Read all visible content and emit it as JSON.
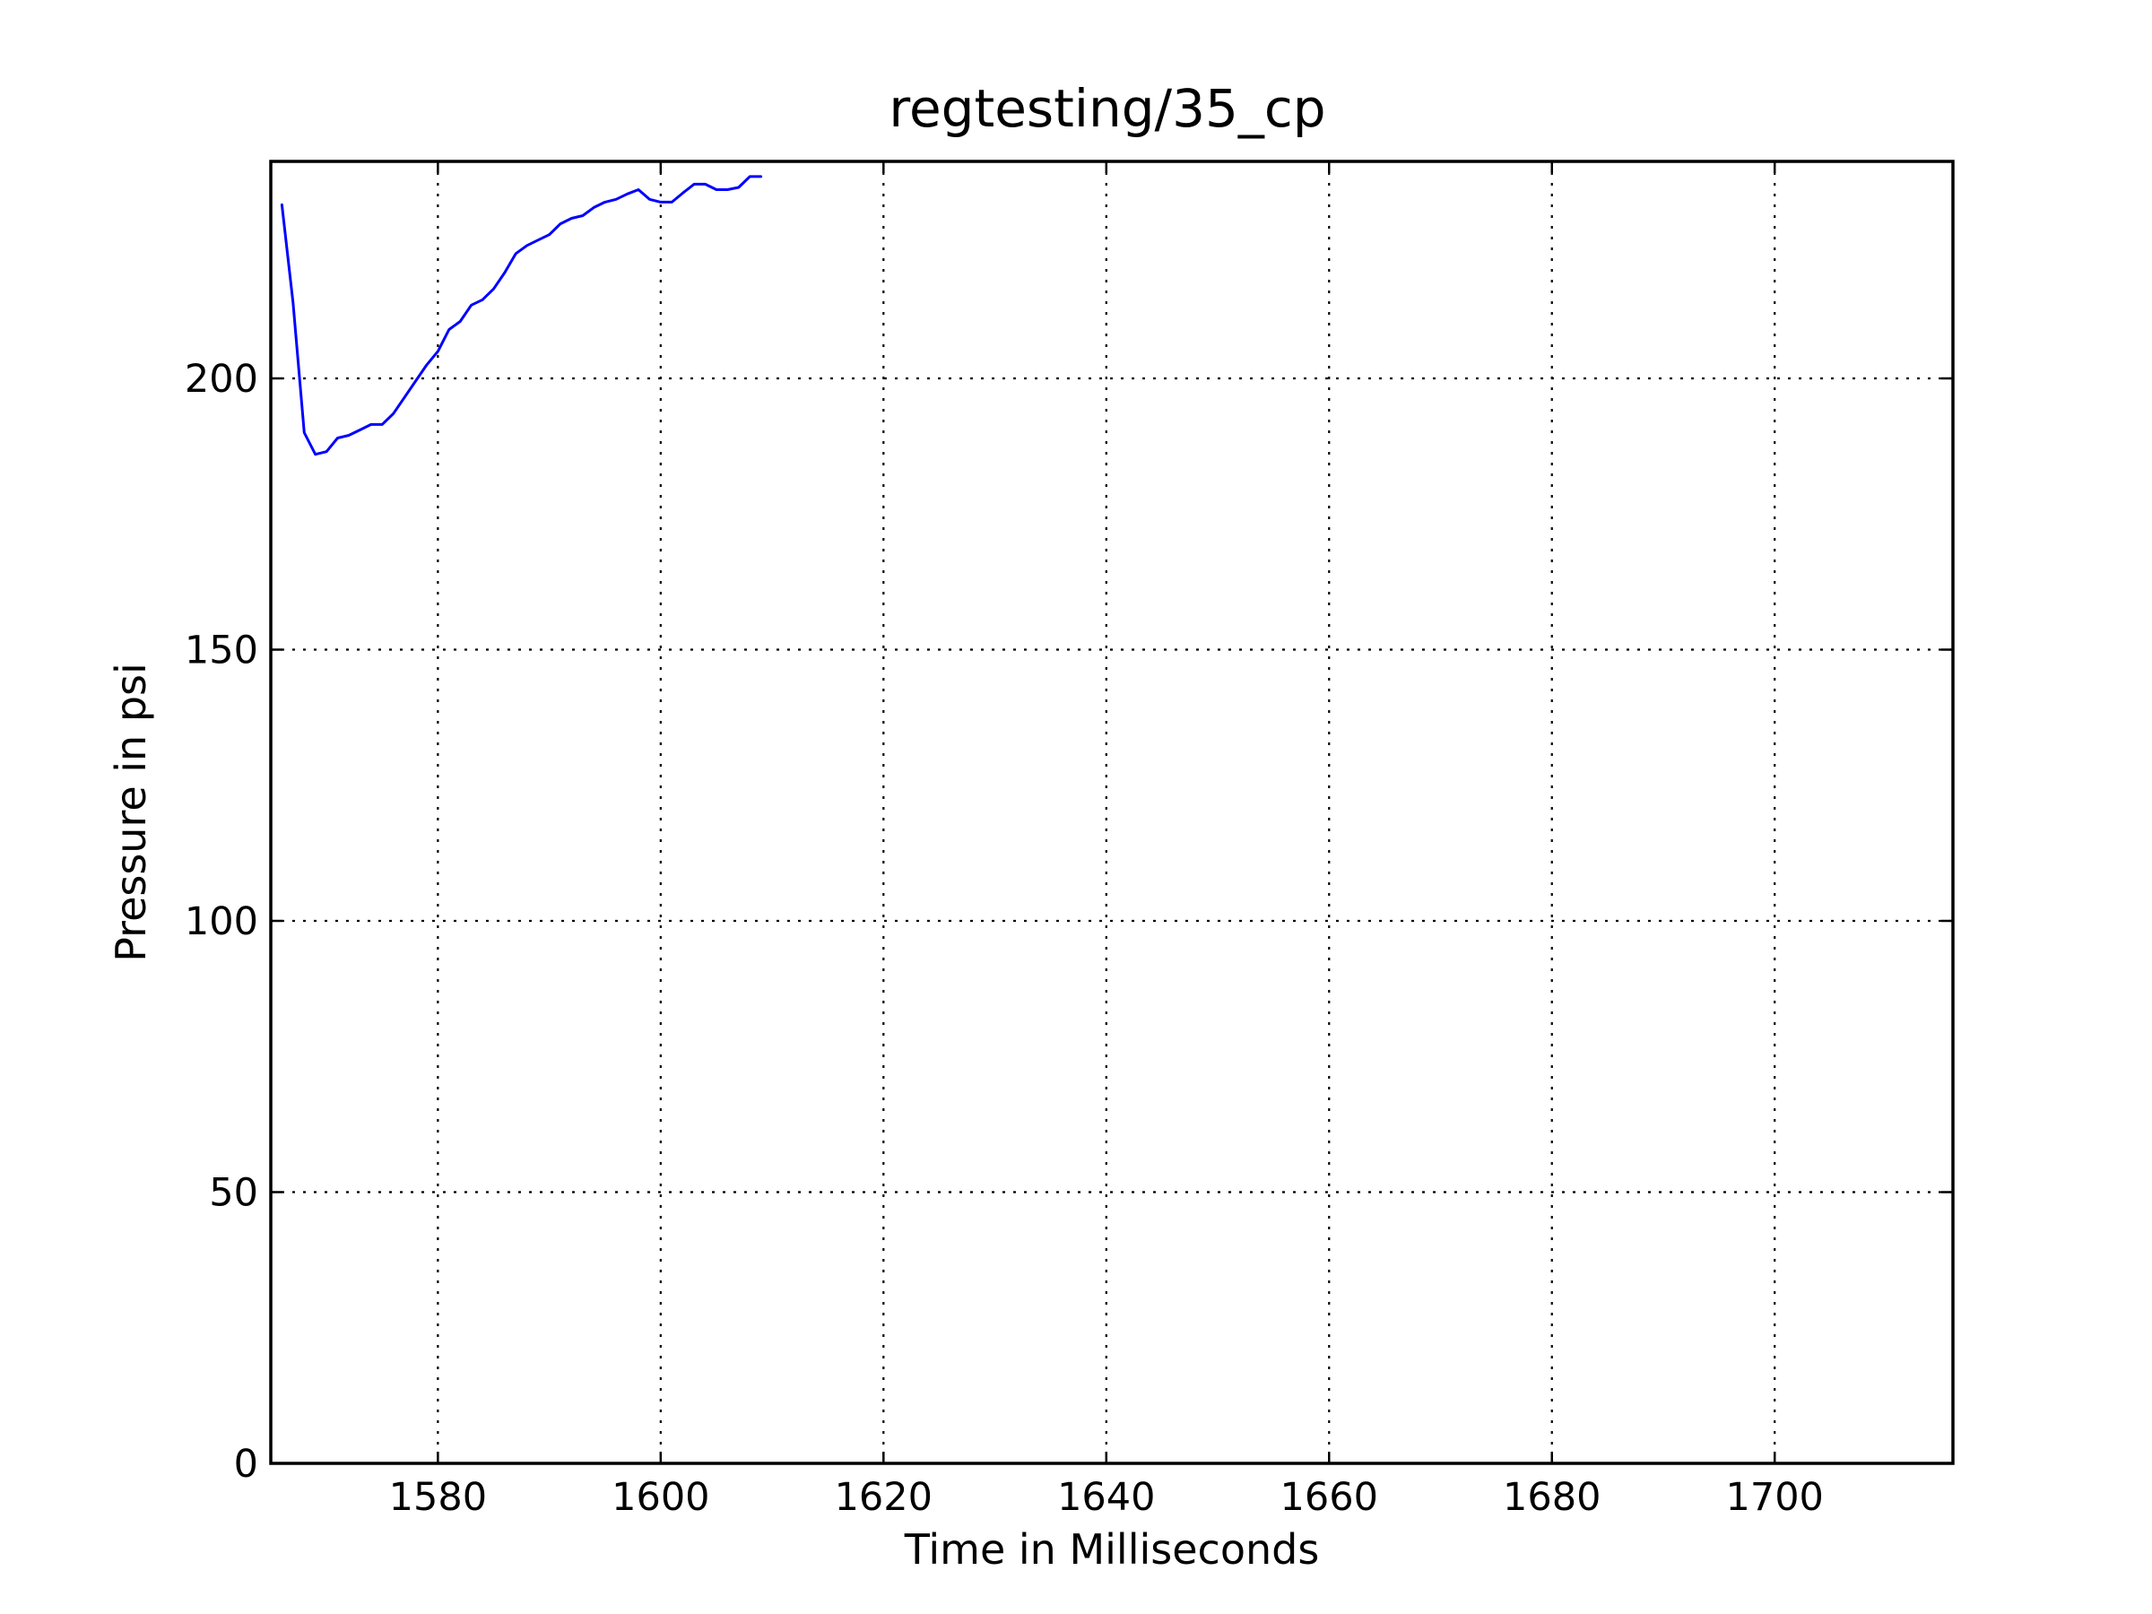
{
  "chart_data": {
    "type": "line",
    "title": "regtesting/35_cp",
    "xlabel": "Time in Milliseconds",
    "ylabel": "Pressure in psi",
    "xlim": [
      1565,
      1716
    ],
    "ylim": [
      0,
      240
    ],
    "x_ticks": [
      1580,
      1600,
      1620,
      1640,
      1660,
      1680,
      1700
    ],
    "y_ticks": [
      0,
      50,
      100,
      150,
      200
    ],
    "x_tick_labels": [
      "1580",
      "1600",
      "1620",
      "1640",
      "1660",
      "1680",
      "1700"
    ],
    "y_tick_labels": [
      "0",
      "50",
      "100",
      "150",
      "200"
    ],
    "grid": true,
    "line_color": "#0000ff",
    "series": [
      {
        "x": [
          1566,
          1567,
          1568,
          1569,
          1570,
          1571,
          1572,
          1573,
          1574,
          1575,
          1576,
          1577,
          1578,
          1579,
          1580,
          1581,
          1582,
          1583,
          1584,
          1585,
          1586,
          1587,
          1588,
          1589,
          1590,
          1591,
          1592,
          1593,
          1594,
          1595,
          1596,
          1597,
          1598,
          1599,
          1600,
          1601,
          1602,
          1603,
          1604,
          1605,
          1606,
          1607,
          1608,
          1609
        ],
        "y": [
          232,
          214,
          190,
          186,
          186.5,
          189,
          189.5,
          190.5,
          191.5,
          191.5,
          193.5,
          196.5,
          199.5,
          202.5,
          205,
          209,
          210.5,
          213.5,
          214.5,
          216.5,
          219.5,
          223,
          224.5,
          225.5,
          226.5,
          228.5,
          229.5,
          230,
          231.5,
          232.5,
          233,
          234,
          234.8,
          233,
          232.5,
          232.5,
          234.2,
          235.8,
          235.8,
          234.8,
          234.8,
          235.2,
          237.2,
          237.2
        ]
      }
    ]
  }
}
